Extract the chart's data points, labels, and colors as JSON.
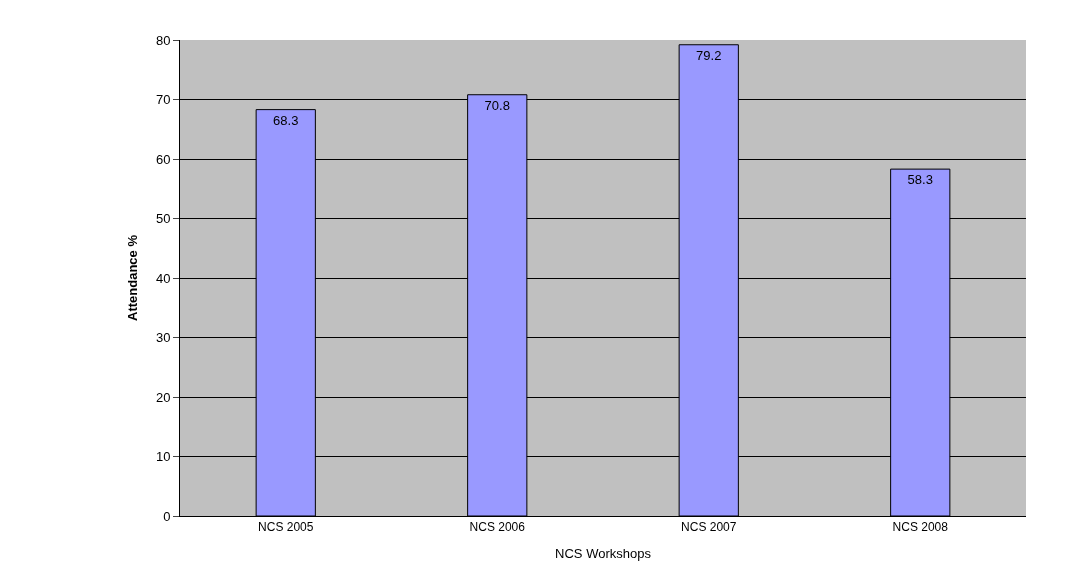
{
  "chart_data": {
    "type": "bar",
    "xlabel": "NCS Workshops",
    "ylabel": "Attendance %",
    "categories": [
      "NCS 2005",
      "NCS 2006",
      "NCS 2007",
      "NCS 2008"
    ],
    "values": [
      68.3,
      70.8,
      79.2,
      58.3
    ],
    "color": "#9999ff",
    "ylim": [
      0,
      80
    ],
    "yticks": [
      0,
      10,
      20,
      30,
      40,
      50,
      60,
      70,
      80
    ],
    "grid": "y",
    "data_labels": true
  }
}
